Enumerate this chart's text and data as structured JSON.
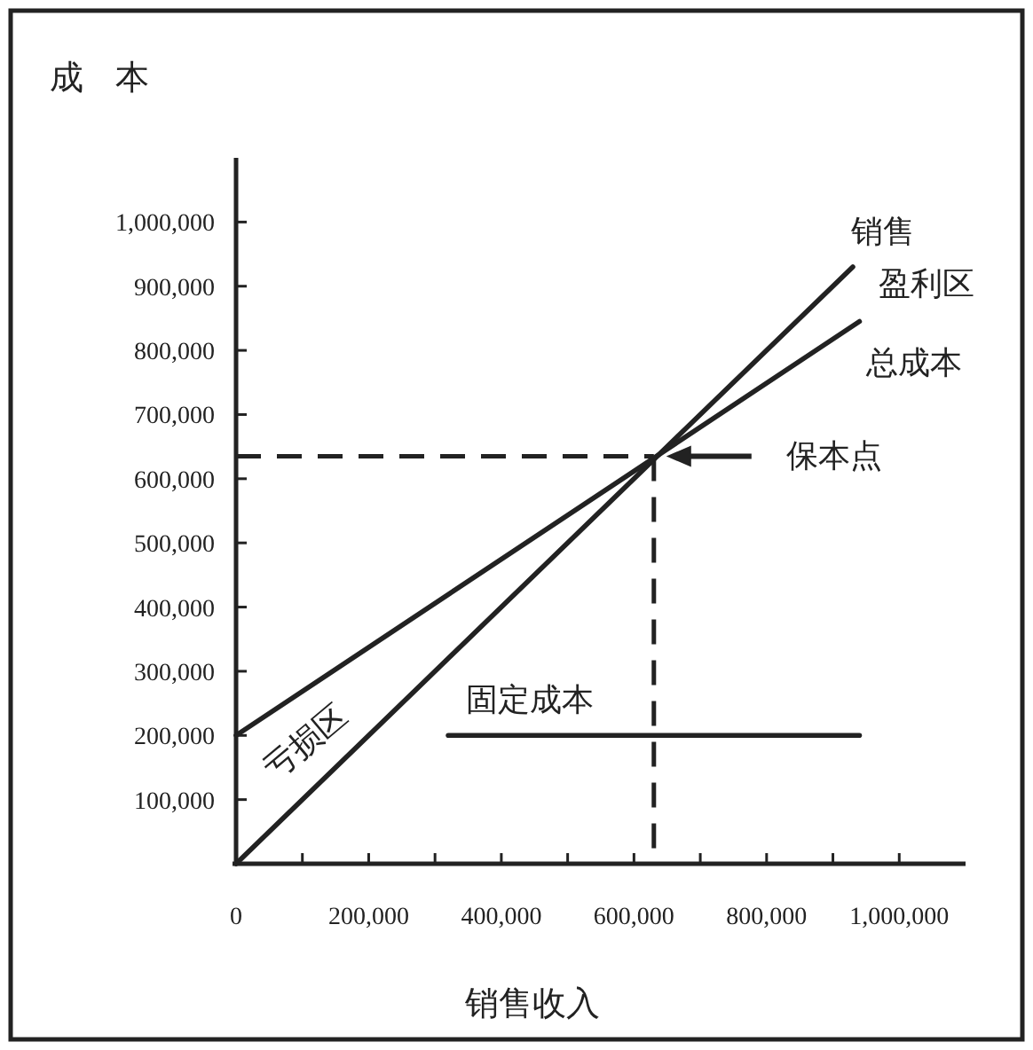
{
  "chart_data": {
    "type": "line",
    "xlabel": "销售收入",
    "ylabel": "成 本",
    "line_style": "solid",
    "series": [
      {
        "name": "销售",
        "color": "#222222",
        "x": [
          0,
          930000
        ],
        "values": [
          0,
          930000
        ]
      },
      {
        "name": "总成本",
        "color": "#222222",
        "x": [
          0,
          940000
        ],
        "values": [
          200000,
          845000
        ]
      },
      {
        "name": "固定成本",
        "color": "#222222",
        "x": [
          320000,
          940000
        ],
        "values": [
          200000,
          200000
        ]
      }
    ],
    "xlim": [
      0,
      1100000
    ],
    "ylim": [
      0,
      1100000
    ],
    "xticks": [
      0,
      {
        "value": 100000,
        "label": null
      },
      {
        "value": 200000,
        "label": "200,000"
      },
      {
        "value": 300000,
        "label": null
      },
      {
        "value": 400000,
        "label": "400,000"
      },
      {
        "value": 500000,
        "label": null
      },
      {
        "value": 600000,
        "label": "600,000"
      },
      {
        "value": 700000,
        "label": null
      },
      {
        "value": 800000,
        "label": "800,000"
      },
      {
        "value": 900000,
        "label": null
      },
      {
        "value": 1000000,
        "label": "1,000,000"
      }
    ],
    "yticks": [
      {
        "value": 100000,
        "label": "100,000"
      },
      {
        "value": 200000,
        "label": "200,000"
      },
      {
        "value": 300000,
        "label": "300,000"
      },
      {
        "value": 400000,
        "label": "400,000"
      },
      {
        "value": 500000,
        "label": "500,000"
      },
      {
        "value": 600000,
        "label": "600,000"
      },
      {
        "value": 700000,
        "label": "700,000"
      },
      {
        "value": 800000,
        "label": "800,000"
      },
      {
        "value": 900000,
        "label": "900,000"
      },
      {
        "value": 1000000,
        "label": "1,000,000"
      }
    ],
    "ref_lines": [
      {
        "axis": "x",
        "value": 630000,
        "line_style": "dashed",
        "color": "#222222"
      },
      {
        "axis": "y",
        "value": 635000,
        "line_style": "dashed",
        "color": "#222222"
      }
    ],
    "annotations": [
      "亏损区",
      "盈利区",
      "保本点"
    ]
  }
}
